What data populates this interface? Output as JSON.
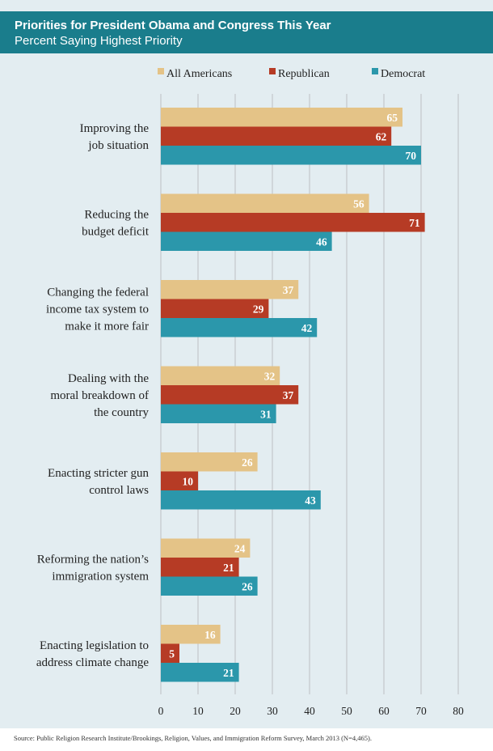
{
  "header": {
    "title": "Priorities for President Obama and Congress This Year",
    "subtitle": "Percent Saying Highest Priority"
  },
  "source": "Source: Public Religion Research Institute/Brookings, Religion, Values, and Immigration Reform Survey, March 2013 (N=4,465).",
  "chart_data": {
    "type": "bar",
    "orientation": "horizontal",
    "title": "Priorities for President Obama and Congress This Year",
    "subtitle": "Percent Saying Highest Priority",
    "categories": [
      [
        "Improving the",
        "job situation"
      ],
      [
        "Reducing the",
        "budget deficit"
      ],
      [
        "Changing the federal",
        "income tax system to",
        "make it more fair"
      ],
      [
        "Dealing with the",
        "moral breakdown of",
        "the country"
      ],
      [
        "Enacting stricter gun",
        "control laws"
      ],
      [
        "Reforming the nation’s",
        "immigration system"
      ],
      [
        "Enacting legislation to",
        "address climate change"
      ]
    ],
    "series": [
      {
        "name": "All Americans",
        "color": "#e4c387",
        "values": [
          65,
          56,
          37,
          32,
          26,
          24,
          16
        ]
      },
      {
        "name": "Republican",
        "color": "#b63b25",
        "values": [
          62,
          71,
          29,
          37,
          10,
          21,
          5
        ]
      },
      {
        "name": "Democrat",
        "color": "#2b97ab",
        "values": [
          70,
          46,
          42,
          31,
          43,
          26,
          21
        ]
      }
    ],
    "xlim": [
      0,
      80
    ],
    "xticks": [
      0,
      10,
      20,
      30,
      40,
      50,
      60,
      70,
      80
    ],
    "grid": true,
    "legend": "top",
    "data_labels": true
  }
}
